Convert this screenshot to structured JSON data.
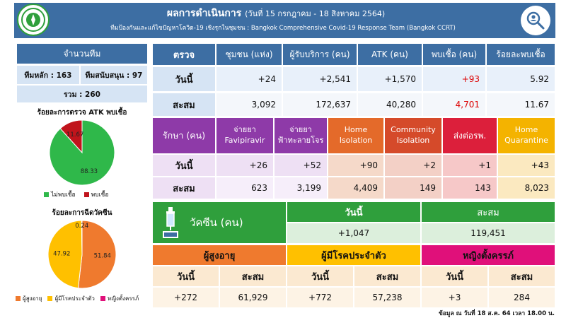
{
  "header": {
    "title": "ผลการดำเนินการ",
    "date_range": "(วันที่ 15 กรกฎาคม - 18 สิงหาคม 2564)",
    "subtitle": "ทีมป้องกันและแก้ไขปัญหาโควิด-19 เชิงรุกในชุมชน : Bangkok Comprehensive Covid-19 Response Team (Bangkok CCRT)"
  },
  "teams": {
    "title": "จำนวนทีม",
    "main_team": "ทีมหลัก : 163",
    "support_team": "ทีมสนับสนุน : 97",
    "total": "รวม : 260"
  },
  "atk_pie": {
    "title": "ร้อยละการตรวจ ATK พบเชื้อ",
    "legend_negative": "ไม่พบเชื้อ",
    "legend_positive": "พบเชื้อ",
    "color_negative": "#2fb84a",
    "color_positive": "#c0141c"
  },
  "vaccine_pie": {
    "title": "ร้อยละการฉีดวัคซีน",
    "legend_elderly": "ผู้สูงอายุ",
    "legend_chronic": "ผู้มีโรคประจำตัว",
    "legend_pregnant": "หญิงตั้งครรภ์",
    "color_elderly": "#ef7a2e",
    "color_chronic": "#ffc000",
    "color_pregnant": "#e0107a"
  },
  "chart_data": [
    {
      "type": "pie",
      "title": "ร้อยละการตรวจ ATK พบเชื้อ",
      "categories": [
        "ไม่พบเชื้อ",
        "พบเชื้อ"
      ],
      "values": [
        88.33,
        11.67
      ],
      "labels": [
        "88.33",
        "11.67"
      ]
    },
    {
      "type": "pie",
      "title": "ร้อยละการฉีดวัคซีน",
      "categories": [
        "ผู้สูงอายุ",
        "ผู้มีโรคประจำตัว",
        "หญิงตั้งครรภ์"
      ],
      "values": [
        51.84,
        47.92,
        0.24
      ],
      "labels": [
        "51.84",
        "47.92",
        "0.24"
      ]
    }
  ],
  "check_table": {
    "headers": [
      "ตรวจ",
      "ชุมชน (แห่ง)",
      "ผู้รับบริการ (คน)",
      "ATK (คน)",
      "พบเชื้อ (คน)",
      "ร้อยละพบเชื้อ"
    ],
    "today": {
      "label": "วันนี้",
      "values": [
        "+24",
        "+2,541",
        "+1,570",
        "+93",
        "5.92"
      ]
    },
    "total": {
      "label": "สะสม",
      "values": [
        "3,092",
        "172,637",
        "40,280",
        "4,701",
        "11.67"
      ]
    }
  },
  "treat_table": {
    "header_label": "รักษา (คน)",
    "headers": [
      [
        "จ่ายยา",
        "Favipiravir"
      ],
      [
        "จ่ายยา",
        "ฟ้าทะลายโจร"
      ],
      [
        "Home",
        "Isolation"
      ],
      [
        "Community",
        "Isolation"
      ],
      [
        "ส่งต่อรพ.",
        ""
      ],
      [
        "Home",
        "Quarantine"
      ]
    ],
    "today": {
      "label": "วันนี้",
      "values": [
        "+26",
        "+52",
        "+90",
        "+2",
        "+1",
        "+43"
      ]
    },
    "total": {
      "label": "สะสม",
      "values": [
        "623",
        "3,199",
        "4,409",
        "149",
        "143",
        "8,023"
      ]
    }
  },
  "vaccine": {
    "label": "วัคซีน (คน)",
    "today_label": "วันนี้",
    "total_label": "สะสม",
    "today_value": "+1,047",
    "total_value": "119,451",
    "groups": [
      {
        "name": "ผู้สูงอายุ",
        "today_label": "วันนี้",
        "total_label": "สะสม",
        "today": "+272",
        "total": "61,929"
      },
      {
        "name": "ผู้มีโรคประจำตัว",
        "today_label": "วันนี้",
        "total_label": "สะสม",
        "today": "+772",
        "total": "57,238"
      },
      {
        "name": "หญิงตั้งครรภ์",
        "today_label": "วันนี้",
        "total_label": "สะสม",
        "today": "+3",
        "total": "284"
      }
    ]
  },
  "footer": "ข้อมูล ณ วันที่ 18 ส.ค. 64 เวลา 18.00 น."
}
